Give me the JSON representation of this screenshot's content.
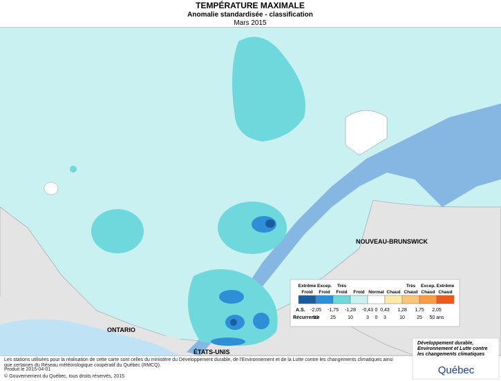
{
  "header": {
    "title": "TEMPÉRATURE MAXIMALE",
    "subtitle": "Anomalie standardisée - classification",
    "period": "Mars 2015"
  },
  "map_labels": {
    "ontario": "ONTARIO",
    "usa": "ÉTATS-UNIS",
    "nb": "NOUVEAU-BRUNSWICK"
  },
  "legend": {
    "classes": [
      {
        "lines": [
          "Extrême",
          "Froid"
        ],
        "color": "#1a5c9e"
      },
      {
        "lines": [
          "Excep.",
          "Froid"
        ],
        "color": "#2f8fd6"
      },
      {
        "lines": [
          "Très",
          "Froid"
        ],
        "color": "#6fd8dc"
      },
      {
        "lines": [
          "Froid"
        ],
        "color": "#c9f1f1"
      },
      {
        "lines": [
          "Normal"
        ],
        "color": "#ffffff"
      },
      {
        "lines": [
          "Chaud"
        ],
        "color": "#fbeaa9"
      },
      {
        "lines": [
          "Très",
          "Chaud"
        ],
        "color": "#f8c676"
      },
      {
        "lines": [
          "Excep.",
          "Chaud"
        ],
        "color": "#f59c45"
      },
      {
        "lines": [
          "Extrême",
          "Chaud"
        ],
        "color": "#ee5a1c"
      }
    ],
    "as_label": "A.S.",
    "as_values": [
      "-2,05",
      "-1,75",
      "-1,28",
      "-0,43",
      "0",
      "0,43",
      "1,28",
      "1,75",
      "2,05"
    ],
    "recurrence_label": "Récurrence",
    "recurrence_values": [
      "50",
      "25",
      "10",
      "3",
      "0",
      "3",
      "10",
      "25",
      "50 ans"
    ]
  },
  "footer": {
    "note": "Les stations utilisées pour la réalisation de cette carte sont celles du ministère du Développement durable, de l'Environnement et de la Lutte contre les changements climatiques ainsi que certaines du Réseau météorologique coopératif du Québec (RMCQ).",
    "produced": "Produit le 2015-04-01",
    "copyright": "© Gouvernement du Québec, tous droits réservés, 2015"
  },
  "logo": {
    "ministry": "Développement durable, Environnement et Lutte contre les changements climatiques",
    "name": "Québec"
  }
}
